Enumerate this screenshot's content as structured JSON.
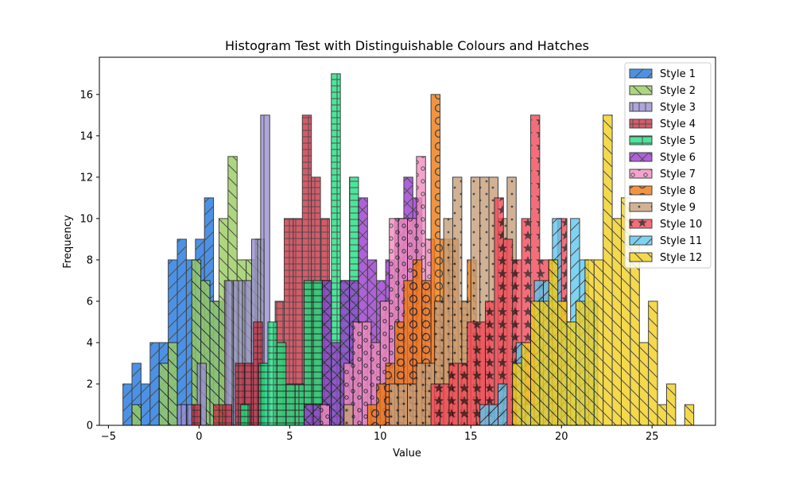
{
  "chart_data": {
    "type": "bar",
    "title": "Histogram Test with Distinguishable Colours and Hatches",
    "xlabel": "Value",
    "ylabel": "Frequency",
    "xlim": [
      -5.5,
      28.5
    ],
    "ylim": [
      0,
      17.8
    ],
    "xticks": [
      -5,
      0,
      5,
      10,
      15,
      20,
      25
    ],
    "yticks": [
      0,
      2,
      4,
      6,
      8,
      10,
      12,
      14,
      16
    ],
    "grid": false,
    "legend_position": "top-right",
    "series": [
      {
        "name": "Style 1",
        "color": "#1f77e0",
        "hatch": "diag-up",
        "bins": [
          [
            -4.2,
            -3.7,
            2
          ],
          [
            -3.7,
            -3.2,
            3
          ],
          [
            -3.2,
            -2.7,
            2
          ],
          [
            -2.7,
            -2.2,
            4
          ],
          [
            -2.2,
            -1.7,
            4
          ],
          [
            -1.7,
            -1.2,
            8
          ],
          [
            -1.2,
            -0.7,
            9
          ],
          [
            -0.7,
            -0.2,
            8
          ],
          [
            -0.2,
            0.3,
            9
          ],
          [
            0.3,
            0.8,
            11
          ],
          [
            0.8,
            1.3,
            6
          ]
        ]
      },
      {
        "name": "Style 2",
        "color": "#9acd5e",
        "hatch": "diag-down",
        "bins": [
          [
            -3.7,
            -3.2,
            1
          ],
          [
            -2.2,
            -1.7,
            3
          ],
          [
            -1.7,
            -1.2,
            4
          ],
          [
            -0.4,
            0.1,
            8
          ],
          [
            0.1,
            0.6,
            7
          ],
          [
            0.6,
            1.1,
            6
          ],
          [
            1.1,
            1.6,
            10
          ],
          [
            1.6,
            2.1,
            13
          ],
          [
            2.1,
            2.6,
            8
          ],
          [
            2.6,
            3.1,
            8
          ],
          [
            3.1,
            3.6,
            9
          ]
        ]
      },
      {
        "name": "Style 3",
        "color": "#9b8fd1",
        "hatch": "vert",
        "bins": [
          [
            -1.2,
            -0.7,
            1
          ],
          [
            -0.7,
            -0.2,
            1
          ],
          [
            -0.1,
            0.4,
            3
          ],
          [
            1.4,
            1.9,
            7
          ],
          [
            1.9,
            2.4,
            7
          ],
          [
            2.4,
            2.9,
            7
          ],
          [
            2.9,
            3.4,
            9
          ],
          [
            3.4,
            3.9,
            15
          ]
        ]
      },
      {
        "name": "Style 4",
        "color": "#cc3344",
        "hatch": "grid",
        "bins": [
          [
            -0.4,
            0.1,
            1
          ],
          [
            0.8,
            1.3,
            1
          ],
          [
            1.3,
            1.8,
            1
          ],
          [
            2.0,
            2.5,
            3
          ],
          [
            2.5,
            3.0,
            3
          ],
          [
            3.0,
            3.5,
            5
          ],
          [
            4.2,
            4.7,
            6
          ],
          [
            4.7,
            5.2,
            10
          ],
          [
            5.2,
            5.7,
            10
          ],
          [
            5.7,
            6.2,
            15
          ],
          [
            6.2,
            6.7,
            12
          ],
          [
            6.7,
            7.2,
            10
          ]
        ]
      },
      {
        "name": "Style 5",
        "color": "#1ee080",
        "hatch": "plus",
        "bins": [
          [
            2.3,
            2.8,
            1
          ],
          [
            3.3,
            3.8,
            3
          ],
          [
            3.8,
            4.3,
            5
          ],
          [
            4.3,
            4.8,
            4
          ],
          [
            4.8,
            5.3,
            2
          ],
          [
            5.3,
            5.8,
            2
          ],
          [
            5.8,
            6.3,
            7
          ],
          [
            6.3,
            6.8,
            7
          ],
          [
            6.8,
            7.3,
            7
          ],
          [
            7.3,
            7.8,
            17
          ],
          [
            7.8,
            8.3,
            7
          ],
          [
            8.3,
            8.8,
            12
          ]
        ]
      },
      {
        "name": "Style 6",
        "color": "#9b3ad0",
        "hatch": "cross",
        "bins": [
          [
            5.8,
            6.3,
            1
          ],
          [
            6.3,
            6.8,
            1
          ],
          [
            6.8,
            7.3,
            7
          ],
          [
            7.3,
            7.8,
            4
          ],
          [
            7.8,
            8.3,
            7
          ],
          [
            8.3,
            8.8,
            7
          ],
          [
            8.8,
            9.3,
            11
          ],
          [
            9.3,
            9.8,
            8
          ],
          [
            9.8,
            10.3,
            7
          ],
          [
            10.3,
            10.8,
            8
          ],
          [
            10.8,
            11.3,
            10
          ],
          [
            11.3,
            11.8,
            12
          ],
          [
            11.8,
            12.3,
            11
          ]
        ]
      },
      {
        "name": "Style 7",
        "color": "#f28ec0",
        "hatch": "circle",
        "bins": [
          [
            6.7,
            7.2,
            1
          ],
          [
            8.0,
            8.5,
            3
          ],
          [
            8.5,
            9.0,
            5
          ],
          [
            9.0,
            9.5,
            5
          ],
          [
            9.5,
            10.0,
            4
          ],
          [
            10.0,
            10.5,
            6
          ],
          [
            10.5,
            11.0,
            10
          ],
          [
            11.0,
            11.5,
            10
          ],
          [
            11.5,
            12.0,
            10
          ],
          [
            12.0,
            12.5,
            13
          ],
          [
            12.5,
            13.0,
            9
          ],
          [
            13.0,
            13.5,
            6
          ],
          [
            13.5,
            14.0,
            8
          ]
        ]
      },
      {
        "name": "Style 8",
        "color": "#f07a10",
        "hatch": "bigcircle",
        "bins": [
          [
            9.3,
            9.8,
            1
          ],
          [
            9.8,
            10.3,
            2
          ],
          [
            10.3,
            10.8,
            3
          ],
          [
            10.8,
            11.3,
            5
          ],
          [
            11.3,
            11.8,
            7
          ],
          [
            11.8,
            12.3,
            8
          ],
          [
            12.3,
            12.8,
            7
          ],
          [
            12.8,
            13.3,
            16
          ],
          [
            13.3,
            13.8,
            9
          ],
          [
            13.8,
            14.3,
            9
          ],
          [
            14.3,
            14.8,
            6
          ],
          [
            14.8,
            15.3,
            8
          ],
          [
            15.3,
            15.8,
            4
          ]
        ]
      },
      {
        "name": "Style 9",
        "color": "#c8a07a",
        "hatch": "dots",
        "bins": [
          [
            8.0,
            8.5,
            1
          ],
          [
            10.5,
            11.0,
            2
          ],
          [
            11.0,
            11.5,
            2
          ],
          [
            11.5,
            12.0,
            2
          ],
          [
            12.0,
            12.5,
            3
          ],
          [
            12.5,
            13.0,
            3
          ],
          [
            13.0,
            13.5,
            6
          ],
          [
            13.5,
            14.0,
            10
          ],
          [
            14.0,
            14.5,
            12
          ],
          [
            14.5,
            15.0,
            6
          ],
          [
            15.0,
            15.5,
            12
          ],
          [
            15.5,
            16.0,
            12
          ],
          [
            16.0,
            16.5,
            12
          ],
          [
            16.5,
            17.0,
            10
          ],
          [
            17.0,
            17.5,
            12
          ]
        ]
      },
      {
        "name": "Style 10",
        "color": "#f24a5a",
        "hatch": "star",
        "bins": [
          [
            12.8,
            13.3,
            2
          ],
          [
            13.3,
            13.8,
            2
          ],
          [
            13.8,
            14.3,
            3
          ],
          [
            14.3,
            14.8,
            3
          ],
          [
            14.8,
            15.3,
            5
          ],
          [
            15.3,
            15.8,
            5
          ],
          [
            15.8,
            16.3,
            6
          ],
          [
            16.3,
            16.8,
            11
          ],
          [
            16.8,
            17.3,
            9
          ],
          [
            17.3,
            17.8,
            8
          ],
          [
            17.8,
            18.3,
            10
          ],
          [
            18.3,
            18.8,
            15
          ],
          [
            18.8,
            19.3,
            8
          ],
          [
            19.3,
            19.8,
            8
          ],
          [
            19.8,
            20.3,
            10
          ]
        ]
      },
      {
        "name": "Style 11",
        "color": "#5ec8f0",
        "hatch": "diag-up",
        "bins": [
          [
            15.5,
            16.0,
            1
          ],
          [
            16.0,
            16.5,
            1
          ],
          [
            16.5,
            17.0,
            2
          ],
          [
            17.5,
            18.0,
            4
          ],
          [
            18.0,
            18.5,
            1
          ],
          [
            18.5,
            19.0,
            7
          ],
          [
            19.0,
            19.5,
            7
          ],
          [
            19.5,
            20.0,
            10
          ],
          [
            20.0,
            20.5,
            5
          ],
          [
            20.5,
            21.0,
            10
          ],
          [
            21.0,
            21.5,
            8
          ],
          [
            21.5,
            22.0,
            6
          ]
        ]
      },
      {
        "name": "Style 12",
        "color": "#f2d020",
        "hatch": "diag-down",
        "bins": [
          [
            17.3,
            17.8,
            3
          ],
          [
            17.8,
            18.3,
            4
          ],
          [
            18.3,
            18.8,
            6
          ],
          [
            18.8,
            19.3,
            6
          ],
          [
            19.3,
            19.8,
            8
          ],
          [
            19.8,
            20.3,
            6
          ],
          [
            20.3,
            20.8,
            5
          ],
          [
            20.8,
            21.3,
            6
          ],
          [
            21.3,
            21.8,
            8
          ],
          [
            21.8,
            22.3,
            8
          ],
          [
            22.3,
            22.8,
            15
          ],
          [
            22.8,
            23.3,
            10
          ],
          [
            23.3,
            23.8,
            11
          ],
          [
            23.8,
            24.3,
            9
          ],
          [
            24.3,
            24.8,
            4
          ],
          [
            24.8,
            25.3,
            6
          ],
          [
            25.3,
            25.8,
            1
          ],
          [
            25.8,
            26.3,
            2
          ],
          [
            26.8,
            27.3,
            1
          ]
        ]
      }
    ]
  }
}
